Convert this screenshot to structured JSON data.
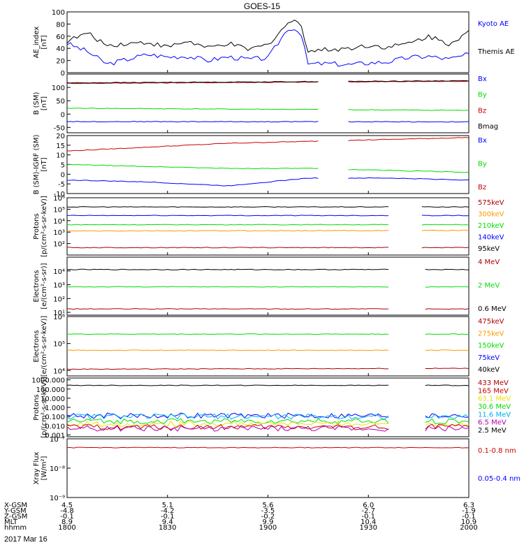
{
  "title": "GOES-15",
  "colors": {
    "black": "#000000",
    "blue": "#0000ff",
    "green": "#00dd00",
    "red": "#cc0000",
    "darkred": "#aa0000",
    "orange": "#ff9900",
    "cyan": "#00b0f0",
    "yellow": "#eedd00",
    "purple": "#b000b0",
    "ltblue": "#1e78ff"
  },
  "chart_data": [
    {
      "type": "line",
      "ylabel": "AE_index\n[nT]",
      "ylim": [
        0,
        100
      ],
      "yticks": [
        "0",
        "20",
        "40",
        "60",
        "80",
        "100"
      ],
      "legend": [
        "Kyoto AE",
        "Themis AE"
      ],
      "x": [
        0,
        0.05,
        0.1,
        0.15,
        0.2,
        0.25,
        0.3,
        0.35,
        0.4,
        0.45,
        0.5,
        0.55,
        0.58,
        0.6,
        0.65,
        0.7,
        0.75,
        0.8,
        0.85,
        0.9,
        0.95,
        1
      ],
      "series": [
        {
          "name": "Kyoto AE",
          "color": "blue",
          "values": [
            48,
            35,
            14,
            22,
            30,
            26,
            27,
            20,
            26,
            22,
            24,
            73,
            70,
            14,
            15,
            13,
            16,
            18,
            25,
            27,
            22,
            30
          ]
        },
        {
          "name": "Themis AE",
          "color": "black",
          "values": [
            52,
            65,
            45,
            48,
            50,
            42,
            52,
            40,
            48,
            38,
            46,
            82,
            85,
            36,
            38,
            40,
            45,
            42,
            48,
            60,
            48,
            67
          ]
        }
      ]
    },
    {
      "type": "line",
      "ylabel": "B (SM)\n[nT]",
      "ylim": [
        -70,
        150
      ],
      "yticks": [
        "-50",
        "0",
        "50",
        "100"
      ],
      "legend": [
        "Bx",
        "By",
        "Bz",
        "Bmag"
      ],
      "gaps": [
        [
          0.625,
          0.7
        ]
      ],
      "series": [
        {
          "name": "Bx",
          "color": "blue",
          "values": [
            -28,
            -29
          ]
        },
        {
          "name": "By",
          "color": "green",
          "values": [
            22,
            14
          ]
        },
        {
          "name": "Bz",
          "color": "red",
          "values": [
            115,
            123
          ]
        },
        {
          "name": "Bmag",
          "color": "black",
          "values": [
            117,
            125
          ]
        }
      ]
    },
    {
      "type": "line",
      "ylabel": "B (SM)-IGRF (SM)\n[nT]",
      "ylim": [
        -10,
        20
      ],
      "yticks": [
        "-10",
        "-5",
        "0",
        "5",
        "10",
        "15",
        "20"
      ],
      "legend": [
        "Bx",
        "By",
        "Bz"
      ],
      "gaps": [
        [
          0.625,
          0.7
        ]
      ],
      "series": [
        {
          "name": "Bx",
          "color": "blue",
          "values": [
            -3,
            -4,
            -6,
            -2,
            -2,
            -3
          ]
        },
        {
          "name": "By",
          "color": "green",
          "values": [
            5,
            4,
            3,
            3,
            2,
            1
          ]
        },
        {
          "name": "Bz",
          "color": "red",
          "values": [
            12,
            14,
            16,
            17,
            18,
            19
          ]
        }
      ]
    },
    {
      "type": "line",
      "scale": "log",
      "ylabel": "Protons\n[p/(cm²-s-sr-keV)]",
      "ylim": [
        1,
        6
      ],
      "yticks": [
        "10²",
        "10³",
        "10⁴",
        "10⁵",
        "10⁶"
      ],
      "legend": [
        "575keV",
        "300keV",
        "210keV",
        "140keV",
        "95keV"
      ],
      "gaps": [
        [
          0.8,
          0.88
        ]
      ],
      "series": [
        {
          "name": "575keV",
          "color": "darkred",
          "values": [
            1.65,
            1.65
          ]
        },
        {
          "name": "300keV",
          "color": "orange",
          "values": [
            3.1,
            3.15
          ]
        },
        {
          "name": "210keV",
          "color": "green",
          "values": [
            3.65,
            3.65
          ]
        },
        {
          "name": "140keV",
          "color": "blue",
          "values": [
            4.45,
            4.45
          ]
        },
        {
          "name": "95keV",
          "color": "black",
          "values": [
            5.2,
            5.2
          ]
        }
      ]
    },
    {
      "type": "line",
      "scale": "log",
      "ylabel": "Electrons\n[e/(cm²-s-sr)]",
      "ylim": [
        0.8,
        5
      ],
      "yticks": [
        "10¹",
        "10²",
        "10³",
        "10⁴"
      ],
      "legend": [
        "4 MeV",
        "2 MeV",
        "0.6 MeV"
      ],
      "gaps": [
        [
          0.8,
          0.89
        ]
      ],
      "series": [
        {
          "name": "4 MeV",
          "color": "darkred",
          "values": [
            1.25,
            1.25
          ]
        },
        {
          "name": "2 MeV",
          "color": "green",
          "values": [
            2.85,
            2.85
          ]
        },
        {
          "name": "0.6 MeV",
          "color": "black",
          "values": [
            4.1,
            4.1
          ]
        }
      ]
    },
    {
      "type": "line",
      "scale": "log",
      "ylabel": "Electrons\n[e/(cm²-s-sr-keV)]",
      "ylim": [
        3.8,
        6
      ],
      "yticks": [
        "10⁴",
        "10⁵",
        "10⁶"
      ],
      "legend": [
        "475keV",
        "275keV",
        "150keV",
        "75keV",
        "40keV"
      ],
      "gaps": [
        [
          0.8,
          0.89
        ]
      ],
      "series": [
        {
          "name": "475keV",
          "color": "darkred",
          "values": [
            4.05,
            4.08
          ]
        },
        {
          "name": "275keV",
          "color": "orange",
          "values": [
            4.75,
            4.75
          ]
        },
        {
          "name": "150keV",
          "color": "green",
          "values": [
            5.35,
            5.35
          ]
        }
      ]
    },
    {
      "type": "line",
      "scale": "log",
      "ylabel": "Protons\n[p/(cm²-s-sr-keV)]",
      "ylim": [
        -3.2,
        3.2
      ],
      "yticks": [
        "0.001",
        "0.010",
        "0.100",
        "1.000",
        "10.000",
        "100.000",
        "1000.000"
      ],
      "legend": [
        "433 MeV",
        "165 MeV",
        "63.1 MeV",
        "30.6 MeV",
        "11.6 MeV",
        "6.5 MeV",
        "2.5 MeV"
      ],
      "gaps": [
        [
          0.8,
          0.89
        ]
      ],
      "series": [
        {
          "name": "433 MeV",
          "color": "black",
          "values": [
            2.4,
            2.4
          ]
        },
        {
          "name": "11.6 MeV",
          "color": "blue",
          "values": [
            -0.9,
            -0.9
          ]
        },
        {
          "name": "30.6 MeV",
          "color": "cyan",
          "values": [
            -1.0,
            -1.0
          ]
        },
        {
          "name": "6.5 MeV",
          "color": "green",
          "values": [
            -1.5,
            -1.5
          ]
        },
        {
          "name": "63.1 MeV",
          "color": "yellow",
          "values": [
            -1.8,
            -1.8
          ]
        },
        {
          "name": "165 MeV",
          "color": "red",
          "values": [
            -2.15,
            -2.15
          ]
        },
        {
          "name": "2.5 MeV",
          "color": "purple",
          "values": [
            -2.3,
            -2.3
          ]
        }
      ]
    },
    {
      "type": "line",
      "scale": "log",
      "ylabel": "Xray Flux\n[W/m²]",
      "ylim": [
        -9,
        -7
      ],
      "yticks": [
        "10⁻⁹",
        "10⁻⁸",
        "10⁻⁷"
      ],
      "legend": [
        "0.1-0.8 nm",
        "0.05-0.4 nm"
      ],
      "series": [
        {
          "name": "0.1-0.8 nm",
          "color": "red",
          "values": [
            -7.3,
            -7.3
          ]
        }
      ]
    }
  ],
  "x_axis": {
    "row_labels": [
      "X-GSM",
      "Y-GSM",
      "Z-GSM",
      "MLT",
      "hhmm"
    ],
    "date": "2017 Mar 16",
    "columns": [
      [
        "4.5",
        "-4.8",
        "-0.1",
        "8.9",
        "1800"
      ],
      [
        "5.1",
        "-4.2",
        "-0.1",
        "9.4",
        "1830"
      ],
      [
        "5.6",
        "-3.5",
        "-0.2",
        "9.9",
        "1900"
      ],
      [
        "6.0",
        "-2.7",
        "-0.1",
        "10.4",
        "1930"
      ],
      [
        "6.3",
        "-1.9",
        "-0.1",
        "10.9",
        "2000"
      ]
    ]
  }
}
